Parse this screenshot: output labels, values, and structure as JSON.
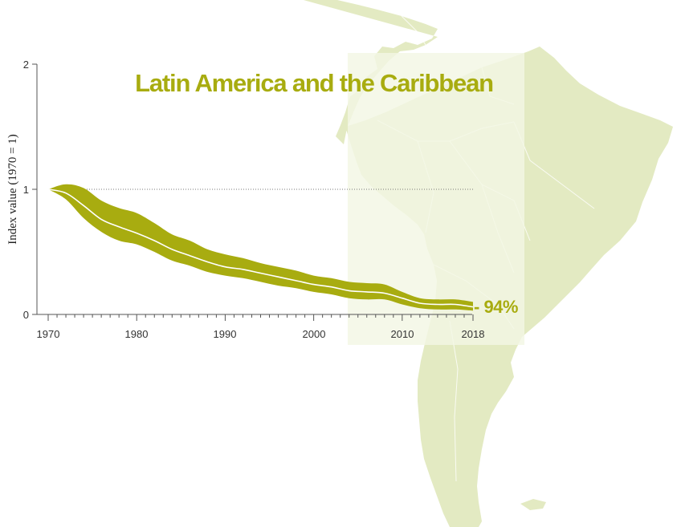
{
  "colors": {
    "band": "#a8ac10",
    "map_land": "#e3eac2",
    "highlight": "#f3f6e4",
    "axis": "#555555",
    "title": "#a8ac10"
  },
  "chart_data": {
    "type": "area",
    "title": "Latin America and the Caribbean",
    "xlabel": "",
    "ylabel": "Index value (1970 = 1)",
    "xlim": [
      1970,
      2018
    ],
    "ylim": [
      0,
      2
    ],
    "xticks": [
      "1970",
      "1980",
      "1990",
      "2000",
      "2010",
      "2018"
    ],
    "yticks": [
      "0",
      "1",
      "2"
    ],
    "baseline": 1,
    "grid": false,
    "annotation": "- 94%",
    "x": [
      1970,
      1972,
      1974,
      1976,
      1978,
      1980,
      1982,
      1984,
      1986,
      1988,
      1990,
      1992,
      1994,
      1996,
      1998,
      2000,
      2002,
      2004,
      2006,
      2008,
      2010,
      2012,
      2014,
      2016,
      2018
    ],
    "index": [
      1.0,
      0.97,
      0.87,
      0.76,
      0.7,
      0.65,
      0.59,
      0.52,
      0.47,
      0.42,
      0.38,
      0.36,
      0.33,
      0.3,
      0.27,
      0.24,
      0.22,
      0.19,
      0.18,
      0.17,
      0.13,
      0.09,
      0.08,
      0.08,
      0.06
    ],
    "upper": [
      1.0,
      1.04,
      1.01,
      0.91,
      0.85,
      0.81,
      0.73,
      0.64,
      0.59,
      0.52,
      0.48,
      0.45,
      0.41,
      0.38,
      0.35,
      0.31,
      0.29,
      0.26,
      0.25,
      0.24,
      0.18,
      0.13,
      0.12,
      0.12,
      0.1
    ],
    "lower": [
      1.0,
      0.92,
      0.77,
      0.66,
      0.59,
      0.56,
      0.5,
      0.43,
      0.39,
      0.34,
      0.31,
      0.29,
      0.26,
      0.23,
      0.21,
      0.18,
      0.16,
      0.13,
      0.12,
      0.12,
      0.08,
      0.05,
      0.04,
      0.04,
      0.03
    ]
  }
}
